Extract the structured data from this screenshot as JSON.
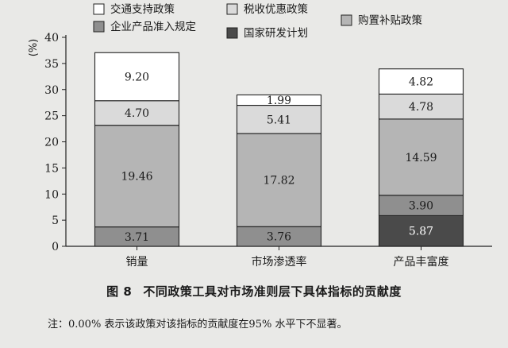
{
  "chart_data": {
    "type": "bar",
    "stacked": true,
    "ylabel": "%",
    "ylim": [
      0,
      40
    ],
    "yticks": [
      0,
      5,
      10,
      15,
      20,
      25,
      30,
      35,
      40
    ],
    "categories": [
      "销量",
      "市场渗透率",
      "产品丰富度"
    ],
    "series": [
      {
        "name": "国家研发计划",
        "color": "#4a4a4a",
        "values": [
          0,
          0,
          5.87
        ]
      },
      {
        "name": "企业产品准入规定",
        "color": "#8f8f8f",
        "values": [
          3.71,
          3.76,
          3.9
        ]
      },
      {
        "name": "购置补贴政策",
        "color": "#b5b5b5",
        "values": [
          19.46,
          17.82,
          14.59
        ]
      },
      {
        "name": "税收优惠政策",
        "color": "#dadada",
        "values": [
          4.7,
          5.41,
          4.78
        ]
      },
      {
        "name": "交通支持政策",
        "color": "#ffffff",
        "values": [
          9.2,
          1.99,
          4.82
        ]
      }
    ],
    "legend": [
      {
        "name": "交通支持政策",
        "color": "#ffffff"
      },
      {
        "name": "税收优惠政策",
        "color": "#dadada"
      },
      {
        "name": "购置补贴政策",
        "color": "#b5b5b5"
      },
      {
        "name": "企业产品准入规定",
        "color": "#8f8f8f"
      },
      {
        "name": "国家研发计划",
        "color": "#4a4a4a"
      }
    ],
    "legend_placement": "top",
    "grid": false
  },
  "caption": {
    "figure_no": "图 8",
    "title": "不同政策工具对市场准则层下具体指标的贡献度"
  },
  "note": "注：0.00% 表示该政策对该指标的贡献度在95% 水平下不显著。"
}
